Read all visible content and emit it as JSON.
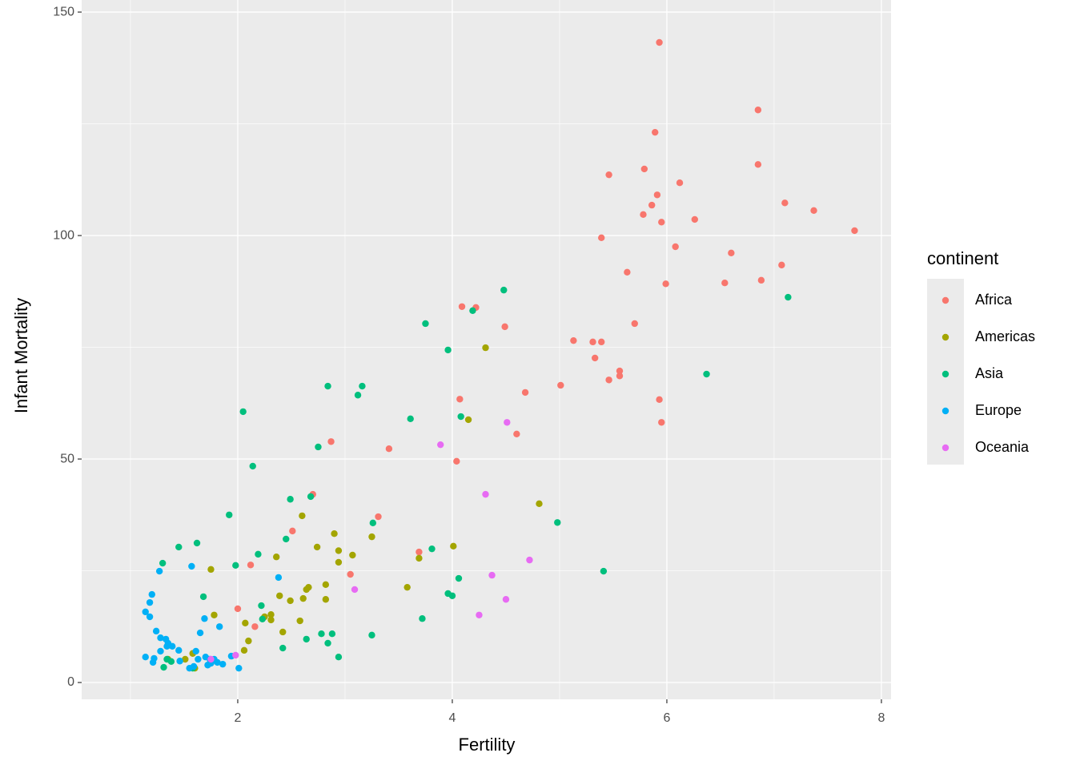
{
  "chart_data": {
    "type": "scatter",
    "x_label": "Fertility",
    "y_label": "Infant Mortality",
    "legend_title": "continent",
    "xlim": [
      0.545,
      8.09
    ],
    "ylim": [
      -3.76,
      152.7
    ],
    "xticks": [
      2,
      4,
      6,
      8
    ],
    "yticks": [
      0,
      50,
      100,
      150
    ],
    "x_minor_ticks": [
      1,
      3,
      5,
      7
    ],
    "y_minor_ticks": [
      25,
      75,
      125
    ],
    "grid": true,
    "legend_position": "right",
    "series": [
      {
        "name": "Africa",
        "color": "#F8766D",
        "x": [
          5.93,
          6.85,
          5.89,
          6.85,
          5.79,
          5.46,
          6.12,
          5.91,
          5.86,
          7.1,
          7.37,
          5.78,
          5.95,
          6.26,
          7.75,
          5.39,
          6.08,
          6.6,
          7.07,
          5.63,
          6.88,
          6.54,
          5.99,
          4.09,
          4.22,
          4.49,
          5.7,
          5.13,
          5.31,
          5.39,
          5.33,
          5.56,
          5.56,
          5.46,
          5.01,
          4.68,
          4.07,
          5.93,
          5.95,
          4.6,
          2.87,
          3.41,
          4.04,
          2.7,
          3.31,
          2.51,
          3.69,
          3.05,
          2.12,
          2.0,
          2.16
        ],
        "values": [
          143.2,
          128.1,
          123.1,
          115.9,
          114.9,
          113.6,
          111.8,
          109.1,
          106.8,
          107.3,
          105.6,
          104.7,
          103.0,
          103.6,
          101.1,
          99.5,
          97.5,
          96.1,
          93.4,
          91.8,
          90.0,
          89.4,
          89.2,
          84.1,
          83.9,
          79.6,
          80.3,
          76.5,
          76.2,
          76.2,
          72.6,
          69.7,
          68.6,
          67.7,
          66.5,
          64.9,
          63.4,
          63.3,
          58.2,
          55.6,
          53.9,
          52.3,
          49.5,
          42.1,
          37.1,
          33.9,
          29.2,
          24.2,
          26.3,
          16.5,
          12.5
        ]
      },
      {
        "name": "Americas",
        "color": "#A3A500",
        "x": [
          4.31,
          4.15,
          4.81,
          2.6,
          2.9,
          3.25,
          2.74,
          3.07,
          4.01,
          2.94,
          2.36,
          3.69,
          1.75,
          2.94,
          2.82,
          3.58,
          2.66,
          2.64,
          2.39,
          2.61,
          2.82,
          2.49,
          1.78,
          2.25,
          2.31,
          2.31,
          2.58,
          2.07,
          2.42,
          2.1,
          2.06,
          1.58,
          1.51,
          1.6,
          1.35
        ],
        "values": [
          74.9,
          58.8,
          40.0,
          37.3,
          33.3,
          32.6,
          30.3,
          28.5,
          30.5,
          29.5,
          28.1,
          27.8,
          25.3,
          26.9,
          21.9,
          21.3,
          21.3,
          20.8,
          19.4,
          18.8,
          18.6,
          18.3,
          15.1,
          14.7,
          15.2,
          14.0,
          13.8,
          13.3,
          11.3,
          9.3,
          7.2,
          6.5,
          5.2,
          3.2,
          5.2
        ]
      },
      {
        "name": "Asia",
        "color": "#00BF7D",
        "x": [
          4.48,
          7.13,
          4.19,
          3.75,
          3.96,
          6.37,
          2.84,
          3.16,
          3.12,
          2.05,
          3.61,
          4.08,
          2.75,
          2.14,
          2.49,
          2.68,
          1.92,
          4.98,
          3.26,
          2.45,
          1.62,
          1.45,
          3.81,
          2.19,
          1.3,
          1.98,
          5.41,
          4.06,
          1.68,
          3.96,
          4.0,
          2.22,
          3.72,
          2.23,
          2.64,
          2.78,
          2.88,
          3.25,
          2.84,
          2.42,
          2.94,
          1.34,
          1.31,
          1.38,
          1.58
        ],
        "values": [
          87.8,
          86.2,
          83.2,
          80.3,
          74.4,
          69.0,
          66.3,
          66.3,
          64.3,
          60.6,
          59.0,
          59.5,
          52.7,
          48.4,
          41.0,
          41.6,
          37.5,
          35.8,
          35.7,
          32.1,
          31.2,
          30.3,
          29.9,
          28.7,
          26.7,
          26.2,
          24.9,
          23.3,
          19.2,
          19.9,
          19.4,
          17.2,
          14.3,
          14.2,
          9.7,
          10.9,
          10.9,
          10.6,
          8.8,
          7.7,
          5.7,
          5.2,
          3.4,
          4.7,
          3.2
        ]
      },
      {
        "name": "Europe",
        "color": "#00B0F6",
        "x": [
          1.2,
          1.18,
          1.14,
          1.18,
          1.27,
          2.38,
          1.57,
          1.69,
          1.83,
          1.65,
          1.24,
          1.28,
          1.33,
          1.35,
          1.34,
          1.39,
          1.45,
          1.61,
          1.28,
          1.14,
          1.22,
          1.21,
          1.46,
          1.63,
          1.7,
          1.74,
          1.78,
          1.81,
          1.86,
          1.72,
          1.75,
          1.59,
          1.55,
          1.94,
          2.01
        ],
        "values": [
          19.7,
          17.9,
          15.8,
          14.7,
          24.9,
          23.5,
          26.0,
          14.3,
          12.5,
          11.1,
          11.5,
          10.0,
          9.7,
          8.8,
          8.1,
          8.1,
          7.2,
          7.0,
          7.0,
          5.7,
          5.4,
          4.5,
          4.8,
          5.2,
          5.7,
          5.2,
          5.2,
          4.5,
          4.1,
          3.9,
          4.3,
          3.6,
          3.2,
          5.9,
          3.2
        ]
      },
      {
        "name": "Oceania",
        "color": "#E76BF3",
        "x": [
          4.51,
          3.89,
          4.31,
          4.72,
          3.09,
          4.37,
          4.5,
          4.25,
          1.98,
          1.75
        ],
        "values": [
          58.2,
          53.2,
          42.1,
          27.4,
          20.8,
          24.0,
          18.6,
          15.1,
          6.1,
          5.2
        ]
      }
    ]
  }
}
